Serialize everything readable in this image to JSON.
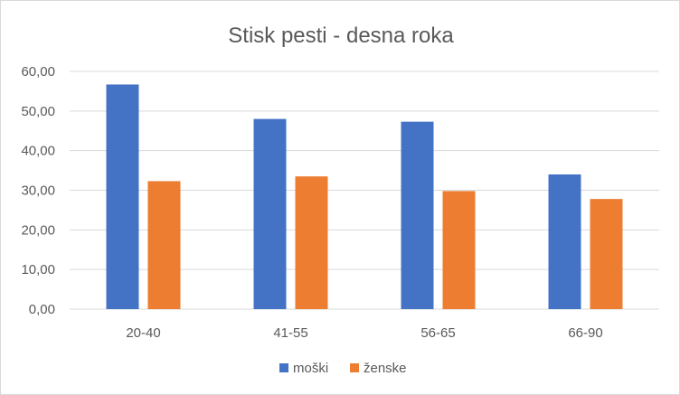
{
  "chart_data": {
    "type": "bar",
    "title": "Stisk pesti - desna  roka",
    "categories": [
      "20-40",
      "41-55",
      "56-65",
      "66-90"
    ],
    "series": [
      {
        "name": "moški",
        "values": [
          56.7,
          48.0,
          47.3,
          34.0
        ],
        "color": "#4472c4"
      },
      {
        "name": "ženske",
        "values": [
          32.3,
          33.5,
          29.8,
          27.8
        ],
        "color": "#ed7d31"
      }
    ],
    "ylim": [
      0,
      60
    ],
    "yticks": [
      "0,00",
      "10,00",
      "20,00",
      "30,00",
      "40,00",
      "50,00",
      "60,00"
    ],
    "grid": true,
    "legend_position": "bottom"
  }
}
